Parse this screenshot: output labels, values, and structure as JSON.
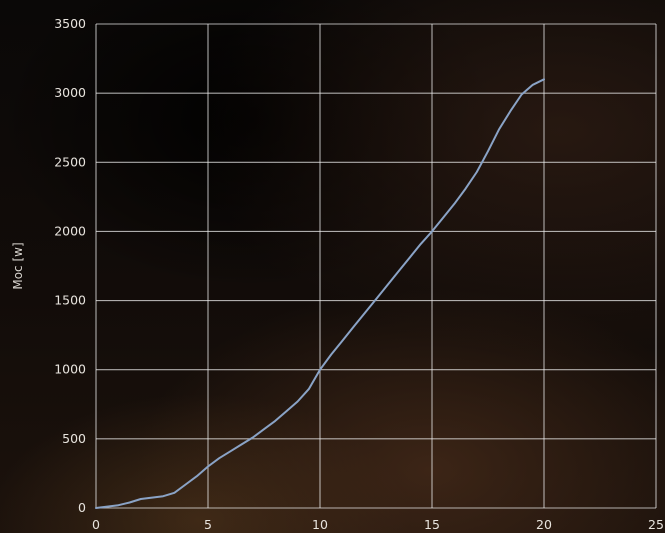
{
  "chart_data": {
    "type": "line",
    "title": "",
    "xlabel": "",
    "ylabel": "Moc [w]",
    "xlim": [
      0,
      25
    ],
    "ylim": [
      0,
      3500
    ],
    "xticks": [
      0,
      5,
      10,
      15,
      20,
      25
    ],
    "yticks": [
      0,
      500,
      1000,
      1500,
      2000,
      2500,
      3000,
      3500
    ],
    "grid": true,
    "legend": "none",
    "colors": {
      "line": "#8aa3c6",
      "grid": "#ebebeb",
      "text": "#e8e4de"
    },
    "series": [
      {
        "x": [
          0,
          0.5,
          1,
          1.5,
          2,
          2.5,
          3,
          3.5,
          4,
          4.5,
          5,
          5.5,
          6,
          6.5,
          7,
          7.5,
          8,
          8.5,
          9,
          9.5,
          10,
          10.5,
          11,
          11.5,
          12,
          12.5,
          13,
          13.5,
          14,
          14.5,
          15,
          15.5,
          16,
          16.5,
          17,
          17.5,
          18,
          18.5,
          19,
          19.5,
          20
        ],
        "y": [
          0,
          10,
          20,
          40,
          65,
          75,
          85,
          110,
          170,
          230,
          300,
          360,
          410,
          460,
          510,
          570,
          630,
          700,
          770,
          860,
          1000,
          1110,
          1210,
          1310,
          1410,
          1510,
          1610,
          1710,
          1810,
          1910,
          2000,
          2100,
          2200,
          2310,
          2430,
          2580,
          2740,
          2870,
          2990,
          3060,
          3100
        ]
      }
    ]
  }
}
